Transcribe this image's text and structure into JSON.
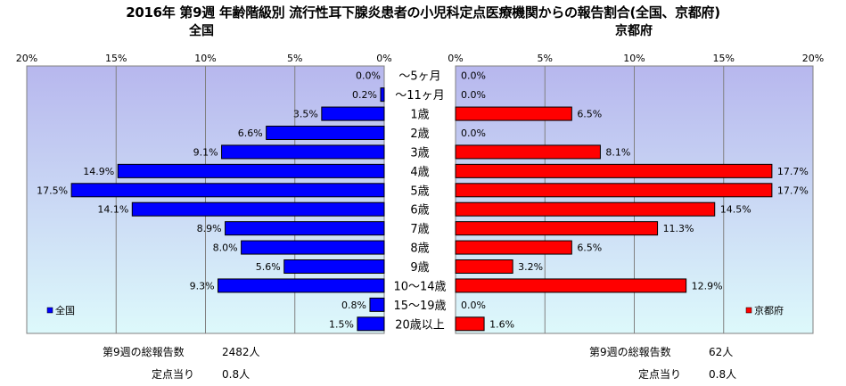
{
  "title": "2016年 第9週 年齢階級別 流行性耳下腺炎患者の小児科定点医療機関からの報告割合(全国、京都府)",
  "panels": {
    "left_title": "全国",
    "right_title": "京都府"
  },
  "colors": {
    "national": "#0000FF",
    "kyoto": "#FF0000",
    "plot_bg_top": "#B7B7EE",
    "plot_bg_bottom": "#DDF9FB"
  },
  "footer": {
    "national": {
      "total_label": "第9週の総報告数",
      "total_value": "2482人",
      "perpoint_label": "定点当り",
      "perpoint_value": "0.8人"
    },
    "kyoto": {
      "total_label": "第9週の総報告数",
      "total_value": "62人",
      "perpoint_label": "定点当り",
      "perpoint_value": "0.8人"
    }
  },
  "chart_data": {
    "type": "bar",
    "orientation": "horizontal",
    "xlim": [
      0,
      20
    ],
    "tick_labels": [
      "0%",
      "5%",
      "10%",
      "15%",
      "20%"
    ],
    "categories": [
      "～5ヶ月",
      "～11ヶ月",
      "1歳",
      "2歳",
      "3歳",
      "4歳",
      "5歳",
      "6歳",
      "7歳",
      "8歳",
      "9歳",
      "10～14歳",
      "15～19歳",
      "20歳以上"
    ],
    "series": [
      {
        "name": "全国",
        "values": [
          0.0,
          0.2,
          3.5,
          6.6,
          9.1,
          14.9,
          17.5,
          14.1,
          8.9,
          8.0,
          5.6,
          9.3,
          0.8,
          1.5
        ],
        "labels": [
          "0.0%",
          "0.2%",
          "3.5%",
          "6.6%",
          "9.1%",
          "14.9%",
          "17.5%",
          "14.1%",
          "8.9%",
          "8.0%",
          "5.6%",
          "9.3%",
          "0.8%",
          "1.5%"
        ]
      },
      {
        "name": "京都府",
        "values": [
          0.0,
          0.0,
          6.5,
          0.0,
          8.1,
          17.7,
          17.7,
          14.5,
          11.3,
          6.5,
          3.2,
          12.9,
          0.0,
          1.6
        ],
        "labels": [
          "0.0%",
          "0.0%",
          "6.5%",
          "0.0%",
          "8.1%",
          "17.7%",
          "17.7%",
          "14.5%",
          "11.3%",
          "6.5%",
          "3.2%",
          "12.9%",
          "0.0%",
          "1.6%"
        ]
      }
    ],
    "legend_position": "bottom-left / bottom-right",
    "grid": true
  }
}
